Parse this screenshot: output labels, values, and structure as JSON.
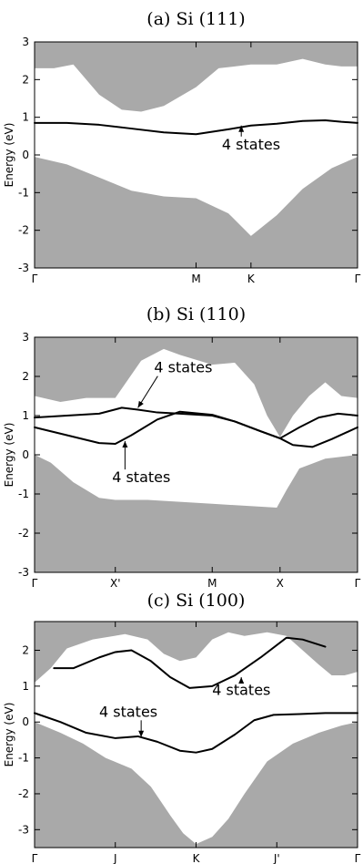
{
  "chart_data": [
    {
      "type": "line",
      "title": "(a) Si (111)",
      "ylabel": "Energy (eV)",
      "ylim": [
        -3,
        3
      ],
      "yticks": [
        -3,
        -2,
        -1,
        0,
        1,
        2,
        3
      ],
      "xlim": [
        0,
        1
      ],
      "kpoints": [
        {
          "label": "Γ",
          "x": 0
        },
        {
          "label": "M",
          "x": 0.5
        },
        {
          "label": "K",
          "x": 0.67
        },
        {
          "label": "Γ",
          "x": 1
        }
      ],
      "conduction_edge": {
        "x": [
          0,
          0.06,
          0.12,
          0.2,
          0.27,
          0.33,
          0.4,
          0.5,
          0.57,
          0.67,
          0.75,
          0.83,
          0.9,
          0.95,
          1
        ],
        "y": [
          2.3,
          2.3,
          2.4,
          1.6,
          1.2,
          1.15,
          1.3,
          1.8,
          2.3,
          2.4,
          2.4,
          2.55,
          2.4,
          2.35,
          2.35
        ]
      },
      "valence_edge": {
        "x": [
          0,
          0.1,
          0.2,
          0.3,
          0.4,
          0.5,
          0.6,
          0.67,
          0.75,
          0.83,
          0.92,
          1
        ],
        "y": [
          -0.05,
          -0.25,
          -0.6,
          -0.95,
          -1.1,
          -1.15,
          -1.55,
          -2.15,
          -1.6,
          -0.9,
          -0.35,
          -0.05
        ]
      },
      "series": [
        {
          "x": [
            0,
            0.1,
            0.2,
            0.3,
            0.4,
            0.5,
            0.6,
            0.67,
            0.75,
            0.83,
            0.9,
            0.95,
            1
          ],
          "y": [
            0.85,
            0.85,
            0.8,
            0.7,
            0.6,
            0.55,
            0.68,
            0.78,
            0.83,
            0.9,
            0.92,
            0.88,
            0.85
          ]
        }
      ],
      "annotations": [
        {
          "text": "4 states",
          "x": 0.58,
          "y": 0.15,
          "arrow_to": [
            0.64,
            0.78
          ]
        }
      ]
    },
    {
      "type": "line",
      "title": "(b) Si (110)",
      "ylabel": "Energy (eV)",
      "ylim": [
        -3,
        3
      ],
      "yticks": [
        -3,
        -2,
        -1,
        0,
        1,
        2,
        3
      ],
      "xlim": [
        0,
        1
      ],
      "kpoints": [
        {
          "label": "Γ",
          "x": 0
        },
        {
          "label": "X'",
          "x": 0.25
        },
        {
          "label": "M",
          "x": 0.55
        },
        {
          "label": "X",
          "x": 0.76
        },
        {
          "label": "Γ",
          "x": 1
        }
      ],
      "conduction_edge": {
        "x": [
          0,
          0.08,
          0.16,
          0.25,
          0.33,
          0.4,
          0.45,
          0.55,
          0.62,
          0.68,
          0.72,
          0.76,
          0.8,
          0.85,
          0.9,
          0.95,
          1
        ],
        "y": [
          1.5,
          1.35,
          1.45,
          1.45,
          2.4,
          2.7,
          2.55,
          2.3,
          2.35,
          1.8,
          1.0,
          0.45,
          1.0,
          1.5,
          1.85,
          1.5,
          1.45
        ]
      },
      "valence_edge": {
        "x": [
          0,
          0.05,
          0.12,
          0.2,
          0.25,
          0.35,
          0.45,
          0.55,
          0.65,
          0.75,
          0.78,
          0.82,
          0.9,
          1
        ],
        "y": [
          0.0,
          -0.2,
          -0.7,
          -1.1,
          -1.15,
          -1.15,
          -1.2,
          -1.25,
          -1.3,
          -1.35,
          -0.9,
          -0.35,
          -0.1,
          0.0
        ]
      },
      "series": [
        {
          "x": [
            0,
            0.1,
            0.2,
            0.27,
            0.32,
            0.38,
            0.45,
            0.55,
            0.62,
            0.7,
            0.76,
            0.82,
            0.88,
            0.94,
            1
          ],
          "y": [
            0.95,
            1.0,
            1.05,
            1.2,
            1.15,
            1.08,
            1.05,
            1.0,
            0.85,
            0.6,
            0.42,
            0.7,
            0.95,
            1.05,
            1.0
          ]
        },
        {
          "x": [
            0,
            0.1,
            0.2,
            0.25,
            0.3,
            0.38,
            0.45,
            0.55,
            0.62,
            0.7,
            0.76,
            0.8,
            0.86,
            0.92,
            1
          ],
          "y": [
            0.7,
            0.5,
            0.3,
            0.28,
            0.5,
            0.9,
            1.1,
            1.02,
            0.85,
            0.6,
            0.42,
            0.25,
            0.2,
            0.4,
            0.7
          ]
        }
      ],
      "annotations": [
        {
          "text": "4 states",
          "x": 0.37,
          "y": 2.1,
          "arrow_to": [
            0.32,
            1.2
          ]
        },
        {
          "text": "4 states",
          "x": 0.24,
          "y": -0.7,
          "arrow_to": [
            0.28,
            0.35
          ]
        }
      ]
    },
    {
      "type": "line",
      "title": "(c) Si (100)",
      "ylabel": "Energy (eV)",
      "ylim": [
        -3.5,
        2.8
      ],
      "yticks": [
        -3,
        -2,
        -1,
        0,
        1,
        2
      ],
      "xlim": [
        0,
        1
      ],
      "kpoints": [
        {
          "label": "Γ",
          "x": 0
        },
        {
          "label": "J",
          "x": 0.25
        },
        {
          "label": "K",
          "x": 0.5
        },
        {
          "label": "J'",
          "x": 0.75
        },
        {
          "label": "Γ",
          "x": 1
        }
      ],
      "conduction_edge": {
        "x": [
          0,
          0.05,
          0.1,
          0.18,
          0.28,
          0.35,
          0.4,
          0.45,
          0.5,
          0.55,
          0.6,
          0.65,
          0.72,
          0.78,
          0.83,
          0.88,
          0.92,
          0.96,
          1
        ],
        "y": [
          1.1,
          1.5,
          2.05,
          2.3,
          2.45,
          2.3,
          1.9,
          1.7,
          1.8,
          2.3,
          2.5,
          2.4,
          2.5,
          2.4,
          2.0,
          1.6,
          1.3,
          1.3,
          1.4
        ]
      },
      "valence_edge": {
        "x": [
          0,
          0.08,
          0.15,
          0.22,
          0.3,
          0.36,
          0.42,
          0.46,
          0.5,
          0.55,
          0.6,
          0.65,
          0.72,
          0.8,
          0.88,
          0.95,
          1
        ],
        "y": [
          0.0,
          -0.3,
          -0.6,
          -1.0,
          -1.3,
          -1.8,
          -2.6,
          -3.1,
          -3.4,
          -3.2,
          -2.7,
          -2.0,
          -1.1,
          -0.6,
          -0.3,
          -0.1,
          0.0
        ]
      },
      "series": [
        {
          "x": [
            0.06,
            0.12,
            0.2,
            0.25,
            0.3,
            0.36,
            0.42,
            0.48,
            0.55,
            0.62,
            0.7,
            0.78,
            0.83,
            0.9
          ],
          "y": [
            1.5,
            1.5,
            1.8,
            1.95,
            2.0,
            1.7,
            1.25,
            0.95,
            1.0,
            1.3,
            1.8,
            2.35,
            2.3,
            2.1
          ]
        },
        {
          "x": [
            0,
            0.08,
            0.16,
            0.25,
            0.32,
            0.38,
            0.45,
            0.5,
            0.55,
            0.62,
            0.68,
            0.74,
            0.82,
            0.9,
            1
          ],
          "y": [
            0.25,
            0.0,
            -0.3,
            -0.45,
            -0.4,
            -0.55,
            -0.8,
            -0.85,
            -0.75,
            -0.35,
            0.05,
            0.2,
            0.22,
            0.25,
            0.25
          ]
        }
      ],
      "annotations": [
        {
          "text": "4 states",
          "x": 0.2,
          "y": 0.15,
          "arrow_to": [
            0.33,
            -0.42
          ]
        },
        {
          "text": "4 states",
          "x": 0.55,
          "y": 0.75,
          "arrow_to": [
            0.64,
            1.25
          ]
        }
      ]
    }
  ]
}
